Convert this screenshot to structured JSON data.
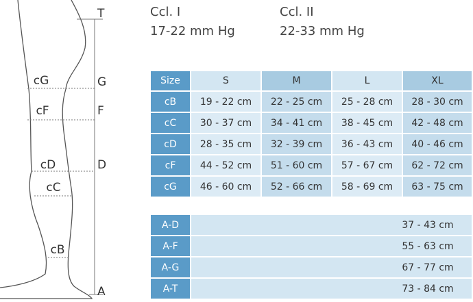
{
  "compression_classes": [
    {
      "name": "Ccl. I",
      "pressure": "17-22 mm Hg"
    },
    {
      "name": "Ccl. II",
      "pressure": "22-33 mm Hg"
    }
  ],
  "leg_diagram": {
    "points": [
      "T",
      "G",
      "F",
      "D",
      "A"
    ],
    "circumferences": [
      "cG",
      "cF",
      "cD",
      "cC",
      "cB"
    ]
  },
  "size_table": {
    "header": [
      "Size",
      "S",
      "M",
      "L",
      "XL"
    ],
    "rows": [
      [
        "cB",
        "19 - 22 cm",
        "22 - 25 cm",
        "25 - 28 cm",
        "28 - 30 cm"
      ],
      [
        "cC",
        "30 - 37 cm",
        "34 - 41 cm",
        "38 - 45 cm",
        "42 - 48 cm"
      ],
      [
        "cD",
        "28 - 35 cm",
        "32 - 39 cm",
        "36 - 43 cm",
        "40 - 46 cm"
      ],
      [
        "cF",
        "44 - 52 cm",
        "51 - 60 cm",
        "57 - 67 cm",
        "62 - 72 cm"
      ],
      [
        "cG",
        "46 - 60 cm",
        "52 - 66 cm",
        "58 - 69 cm",
        "63 - 75 cm"
      ]
    ]
  },
  "length_table": {
    "rows": [
      [
        "A-D",
        "37 - 43 cm"
      ],
      [
        "A-F",
        "55 - 63 cm"
      ],
      [
        "A-G",
        "67 - 77 cm"
      ],
      [
        "A-T",
        "73 - 84 cm"
      ]
    ]
  }
}
